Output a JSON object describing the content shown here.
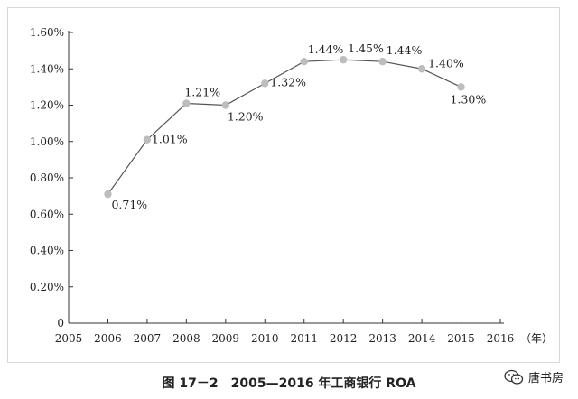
{
  "chart_data": {
    "type": "line",
    "title": "",
    "x": [
      2006,
      2007,
      2008,
      2009,
      2010,
      2011,
      2012,
      2013,
      2014,
      2015
    ],
    "series": [
      {
        "values": [
          0.71,
          1.01,
          1.21,
          1.2,
          1.32,
          1.44,
          1.45,
          1.44,
          1.4,
          1.3
        ]
      }
    ],
    "data_labels": [
      "0.71%",
      "1.01%",
      "1.21%",
      "1.20%",
      "1.32%",
      "1.44%",
      "1.45%",
      "1.44%",
      "1.40%",
      "1.30%"
    ],
    "x_ticks": [
      "2005",
      "2006",
      "2007",
      "2008",
      "2009",
      "2010",
      "2011",
      "2012",
      "2013",
      "2014",
      "2015",
      "2016"
    ],
    "xlim": [
      2005,
      2016
    ],
    "x_unit": "（年）",
    "y_ticks": [
      "0",
      "0.20%",
      "0.40%",
      "0.60%",
      "0.80%",
      "1.00%",
      "1.20%",
      "1.40%",
      "1.60%"
    ],
    "ylim": [
      0,
      1.6
    ],
    "grid": false,
    "line_color": "#555555",
    "marker_color": "#bdbdbd"
  },
  "caption": "图 17－2　2005—2016 年工商银行 ROA",
  "watermark": {
    "text": "唐书房",
    "icon": "wechat-icon"
  }
}
